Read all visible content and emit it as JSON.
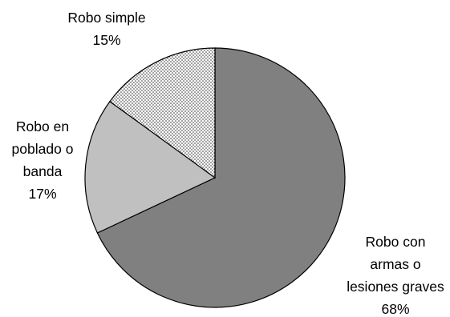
{
  "chart_data": {
    "type": "pie",
    "title": "",
    "slices": [
      {
        "label_lines": [
          "Robo con",
          "armas o",
          "lesiones graves"
        ],
        "percent_label": "68%",
        "value": 68,
        "color": "#808080",
        "pattern": "solid"
      },
      {
        "label_lines": [
          "Robo en",
          "poblado o",
          "banda"
        ],
        "percent_label": "17%",
        "value": 17,
        "color": "#c0c0c0",
        "pattern": "solid"
      },
      {
        "label_lines": [
          "Robo simple"
        ],
        "percent_label": "15%",
        "value": 15,
        "color": "#ffffff",
        "pattern": "dots"
      }
    ],
    "start": "top, clockwise",
    "legend": "none (labels beside slices)",
    "colors": {
      "outline": "#000000",
      "dot": "#333333"
    }
  }
}
